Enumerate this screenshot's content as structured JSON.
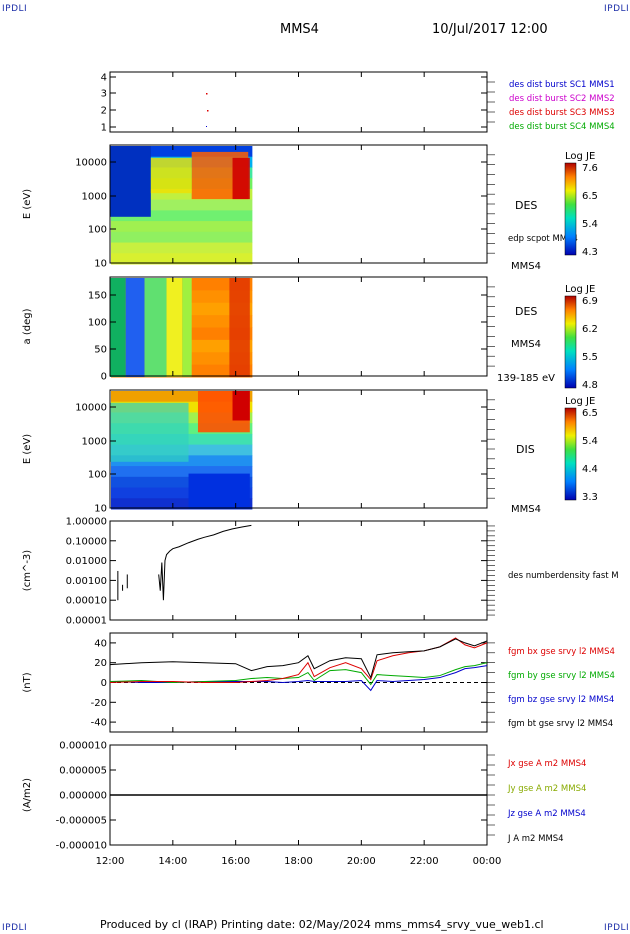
{
  "corners": {
    "tl": "IPDLI",
    "tr": "IPDLI",
    "bl": "IPDLI",
    "br": "IPDLI"
  },
  "header": {
    "spacecraft": "MMS4",
    "datetime": "10/Jul/2017 12:00"
  },
  "footer": {
    "text": "Produced by cl (IRAP)   Printing date: 02/May/2024   mms_mms4_srvy_vue_web1.cl"
  },
  "x_axis": {
    "ticks": [
      "12:00",
      "14:00",
      "16:00",
      "18:00",
      "20:00",
      "22:00",
      "00:00"
    ],
    "start_hours": 12,
    "end_hours": 24
  },
  "panels": [
    {
      "id": "p1",
      "ylabel": "",
      "yticks": [
        "1",
        "2",
        "3",
        "4"
      ],
      "legend": [
        {
          "text": "des dist burst SC1 MMS1",
          "color": "#0000cc"
        },
        {
          "text": "des dist burst SC2 MMS2",
          "color": "#cc00cc"
        },
        {
          "text": "des dist burst SC3 MMS3",
          "color": "#dd0000"
        },
        {
          "text": "des dist burst SC4 MMS4",
          "color": "#00aa00"
        }
      ]
    },
    {
      "id": "p2",
      "ylabel": "E (eV)",
      "yticks": [
        "10",
        "100",
        "1000",
        "10000"
      ],
      "side": [
        "DES",
        "edp scpot MMS4",
        "MMS4"
      ],
      "colorbar": {
        "title": "Log JE",
        "ticks": [
          "7.6",
          "6.5",
          "5.4",
          "4.3"
        ]
      }
    },
    {
      "id": "p3",
      "ylabel": "a (deg)",
      "yticks": [
        "0",
        "50",
        "100",
        "150"
      ],
      "side": [
        "DES",
        "MMS4",
        "139-185 eV"
      ],
      "colorbar": {
        "title": "Log JE",
        "ticks": [
          "6.9",
          "6.2",
          "5.5",
          "4.8"
        ]
      }
    },
    {
      "id": "p4",
      "ylabel": "E (eV)",
      "yticks": [
        "10",
        "100",
        "1000",
        "10000"
      ],
      "side": [
        "DIS",
        "MMS4"
      ],
      "colorbar": {
        "title": "Log JE",
        "ticks": [
          "6.5",
          "5.4",
          "4.4",
          "3.3"
        ]
      }
    },
    {
      "id": "p5",
      "ylabel": "(cm^-3)",
      "yticks": [
        "0.00001",
        "0.00010",
        "0.00100",
        "0.01000",
        "0.10000",
        "1.00000"
      ],
      "legend": [
        {
          "text": "des numberdensity fast M",
          "color": "#000000"
        }
      ]
    },
    {
      "id": "p6",
      "ylabel": "(nT)",
      "yticks": [
        "-40",
        "-20",
        "0",
        "20",
        "40"
      ],
      "legend": [
        {
          "text": "fgm bx gse srvy l2 MMS4",
          "color": "#dd0000"
        },
        {
          "text": "fgm by gse srvy l2 MMS4",
          "color": "#00aa00"
        },
        {
          "text": "fgm bz gse srvy l2 MMS4",
          "color": "#0000cc"
        },
        {
          "text": "fgm bt gse srvy l2 MMS4",
          "color": "#000000"
        }
      ]
    },
    {
      "id": "p7",
      "ylabel": "(A/m2)",
      "yticks": [
        "-0.000010",
        "-0.000005",
        "0.000000",
        "0.000005",
        "0.000010"
      ],
      "legend": [
        {
          "text": "Jx gse A m2 MMS4",
          "color": "#dd0000"
        },
        {
          "text": "Jy gse A m2 MMS4",
          "color": "#88aa00"
        },
        {
          "text": "Jz gse A m2 MMS4",
          "color": "#0000cc"
        },
        {
          "text": "J A m2 MMS4",
          "color": "#000000"
        }
      ]
    }
  ],
  "chart_data": {
    "type": "line",
    "x_range_hours": [
      12,
      24
    ],
    "density": {
      "name": "des numberdensity fast M",
      "ylim": [
        1e-05,
        1.0
      ],
      "scale": "log",
      "x": [
        13.55,
        13.6,
        13.65,
        13.7,
        13.75,
        13.8,
        13.9,
        14.0,
        14.2,
        14.5,
        14.8,
        15.0,
        15.3,
        15.6,
        15.9,
        16.2,
        16.5
      ],
      "y": [
        0.002,
        0.0003,
        0.008,
        0.0001,
        0.01,
        0.02,
        0.03,
        0.04,
        0.05,
        0.08,
        0.12,
        0.15,
        0.2,
        0.3,
        0.4,
        0.5,
        0.6
      ]
    },
    "bfield": {
      "ylim": [
        -50,
        50
      ],
      "x": [
        12,
        13,
        14,
        15,
        16,
        16.5,
        17,
        17.5,
        18,
        18.3,
        18.5,
        19,
        19.5,
        20,
        20.3,
        20.5,
        21,
        21.5,
        22,
        22.5,
        23,
        23.3,
        23.6,
        24
      ],
      "series": [
        {
          "name": "fgm bt gse srvy l2 MMS4",
          "color": "#000000",
          "values": [
            18,
            20,
            21,
            20,
            19,
            12,
            16,
            17,
            20,
            27,
            14,
            22,
            25,
            24,
            5,
            28,
            30,
            31,
            32,
            36,
            44,
            40,
            37,
            42
          ]
        },
        {
          "name": "fgm bx gse srvy l2 MMS4",
          "color": "#dd0000",
          "values": [
            0,
            1,
            1,
            0,
            0,
            1,
            2,
            4,
            8,
            20,
            6,
            15,
            20,
            14,
            3,
            22,
            27,
            30,
            32,
            36,
            45,
            38,
            35,
            40
          ]
        },
        {
          "name": "fgm by gse srvy l2 MMS4",
          "color": "#00aa00",
          "values": [
            1,
            2,
            0,
            1,
            2,
            4,
            5,
            4,
            5,
            10,
            2,
            12,
            13,
            10,
            -2,
            8,
            7,
            6,
            5,
            7,
            13,
            16,
            17,
            20
          ]
        },
        {
          "name": "fgm bz gse srvy l2 MMS4",
          "color": "#0000cc",
          "values": [
            1,
            0,
            0,
            1,
            1,
            1,
            1,
            0,
            1,
            2,
            1,
            1,
            1,
            2,
            -8,
            2,
            1,
            2,
            3,
            5,
            10,
            14,
            15,
            17
          ]
        }
      ]
    },
    "current": {
      "ylim": [
        -1e-05,
        1e-05
      ],
      "value": 0.0
    }
  }
}
